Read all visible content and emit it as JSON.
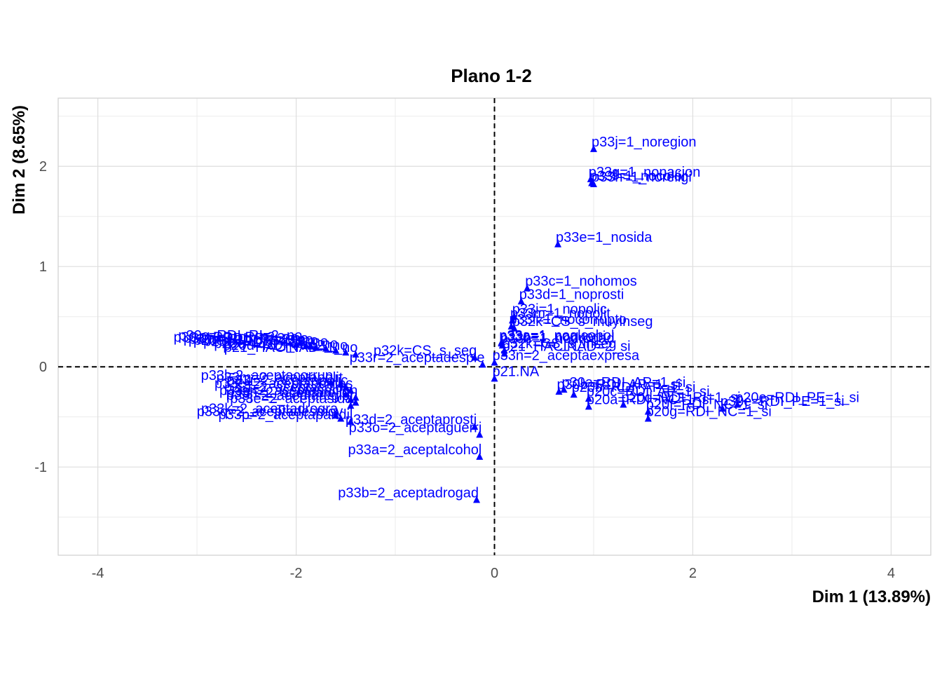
{
  "chart_data": {
    "type": "scatter",
    "title": "Plano 1-2",
    "xlabel": "Dim 1 (13.89%)",
    "ylabel": "Dim 2 (8.65%)",
    "xlim": [
      -4.4,
      4.4
    ],
    "ylim": [
      -1.88,
      2.68
    ],
    "x_ticks": [
      -4,
      -2,
      0,
      2,
      4
    ],
    "y_ticks": [
      -1,
      0,
      1,
      2
    ],
    "x_tick_labels": [
      "-4",
      "-2",
      "0",
      "2",
      "4"
    ],
    "y_tick_labels": [
      "-1",
      "0",
      "1",
      "2"
    ],
    "grid": true,
    "reference_lines": {
      "x": 0,
      "y": 0,
      "style": "dashed"
    },
    "marker": "triangle",
    "color": "#0000ff",
    "points": [
      {
        "label": "p33j=1_noregion",
        "x": 1.0,
        "y": 2.17
      },
      {
        "label": "p33g=1_nonacion",
        "x": 0.97,
        "y": 1.87
      },
      {
        "label": "p33f=1_nocolor",
        "x": 0.98,
        "y": 1.83
      },
      {
        "label": "p33h=1_noreligi",
        "x": 1.0,
        "y": 1.82
      },
      {
        "label": "p33e=1_nosida",
        "x": 0.64,
        "y": 1.22
      },
      {
        "label": "p33c=1_nohomos",
        "x": 0.33,
        "y": 0.78
      },
      {
        "label": "p33d=1_noprosti",
        "x": 0.27,
        "y": 0.65
      },
      {
        "label": "p33i=1_nopolic",
        "x": 0.2,
        "y": 0.5
      },
      {
        "label": "p33m=1_nopolit",
        "x": 0.18,
        "y": 0.46
      },
      {
        "label": "p33l=1_nocorrupto",
        "x": 0.17,
        "y": 0.4
      },
      {
        "label": "p32k=CS_s_muyinseg",
        "x": 0.2,
        "y": 0.38
      },
      {
        "label": "p33a=1_noalcohol",
        "x": 0.07,
        "y": 0.24
      },
      {
        "label": "p33o=1_noguerri",
        "x": 0.07,
        "y": 0.23
      },
      {
        "label": "p33b=1_nodrogad",
        "x": 0.08,
        "y": 0.21
      },
      {
        "label": "p32k=CS_s_inseg",
        "x": 0.1,
        "y": 0.16
      },
      {
        "label": "p21_HACINAD=2_si",
        "x": 0.1,
        "y": 0.13
      },
      {
        "label": "p33n=2_aceptaexpresa",
        "x": 0.0,
        "y": 0.04
      },
      {
        "label": "p33r=2_aceptadesple",
        "x": -0.12,
        "y": 0.02
      },
      {
        "label": "p21.NA",
        "x": 0.0,
        "y": -0.12
      },
      {
        "label": "p30c=RDI_RI=2_no",
        "x": -1.96,
        "y": 0.24
      },
      {
        "label": "p30a=RDI_RI=2_no",
        "x": -2.0,
        "y": 0.22
      },
      {
        "label": "p30b=RDI_RI=2_no",
        "x": -1.9,
        "y": 0.21
      },
      {
        "label": "p30d=RDI_RI=2_no",
        "x": -1.85,
        "y": 0.2
      },
      {
        "label": "p20a=RDI_RI=2_no",
        "x": -1.8,
        "y": 0.19
      },
      {
        "label": "p20b=RDI_RI=2_no",
        "x": -1.7,
        "y": 0.18
      },
      {
        "label": "p20c=RDI_RI=2_no",
        "x": -1.6,
        "y": 0.16
      },
      {
        "label": "p20d=RDI_RI=2_no",
        "x": -1.5,
        "y": 0.14
      },
      {
        "label": "p21_HACINAD=1_no",
        "x": -1.4,
        "y": 0.12
      },
      {
        "label": "p32k=CS_s_seg",
        "x": -0.2,
        "y": 0.09
      },
      {
        "label": "p33l=2_aceptacorrup",
        "x": -1.65,
        "y": -0.16
      },
      {
        "label": "p33m=2_aceptapolit",
        "x": -1.55,
        "y": -0.18
      },
      {
        "label": "p33i=2_aceptapolic",
        "x": -1.5,
        "y": -0.21
      },
      {
        "label": "p33c=2_aceptahomos",
        "x": -1.45,
        "y": -0.24
      },
      {
        "label": "p33f=2_aceptacolor",
        "x": -1.5,
        "y": -0.28
      },
      {
        "label": "p33g=2_aceptanacion",
        "x": -1.4,
        "y": -0.31
      },
      {
        "label": "p33h=2_aceptareligi",
        "x": -1.45,
        "y": -0.33
      },
      {
        "label": "p33j=2_aceptaregion",
        "x": -1.4,
        "y": -0.36
      },
      {
        "label": "p33e=2_aceptasida",
        "x": -1.45,
        "y": -0.39
      },
      {
        "label": "p33k=2_aceptadrogra",
        "x": -1.6,
        "y": -0.49
      },
      {
        "label": "p33q=2_aceptadesmov",
        "x": -1.55,
        "y": -0.52
      },
      {
        "label": "p33p=2_aceptapandil",
        "x": -1.45,
        "y": -0.55
      },
      {
        "label": "p33d=2_aceptaprosti",
        "x": -0.2,
        "y": -0.6
      },
      {
        "label": "p33o=2_aceptaguerri",
        "x": -0.15,
        "y": -0.68
      },
      {
        "label": "p33a=2_aceptalcohol",
        "x": -0.15,
        "y": -0.9
      },
      {
        "label": "p33b=2_aceptadrogad",
        "x": -0.18,
        "y": -1.33
      },
      {
        "label": "p30b=RDI_AP=1_si",
        "x": 0.65,
        "y": -0.25
      },
      {
        "label": "p30a=RDI_AP=1_si",
        "x": 0.7,
        "y": -0.23
      },
      {
        "label": "p20b=RDI_AP=1_si",
        "x": 0.8,
        "y": -0.28
      },
      {
        "label": "p20c=RDI_AP=1_si",
        "x": 0.95,
        "y": -0.32
      },
      {
        "label": "p20d=RDI_RI=1_si",
        "x": 1.3,
        "y": -0.38
      },
      {
        "label": "p20e=RDI_PE=1_si",
        "x": 2.45,
        "y": -0.38
      },
      {
        "label": "p30e=RDI_PE=1_si",
        "x": 2.3,
        "y": -0.42
      },
      {
        "label": "p20f=RDI_NC=1_si",
        "x": 1.55,
        "y": -0.45
      },
      {
        "label": "p20a=RDI_NC=1_si",
        "x": 0.95,
        "y": -0.4
      },
      {
        "label": "p20g=RDI_NC=1_si",
        "x": 1.55,
        "y": -0.52
      }
    ]
  }
}
